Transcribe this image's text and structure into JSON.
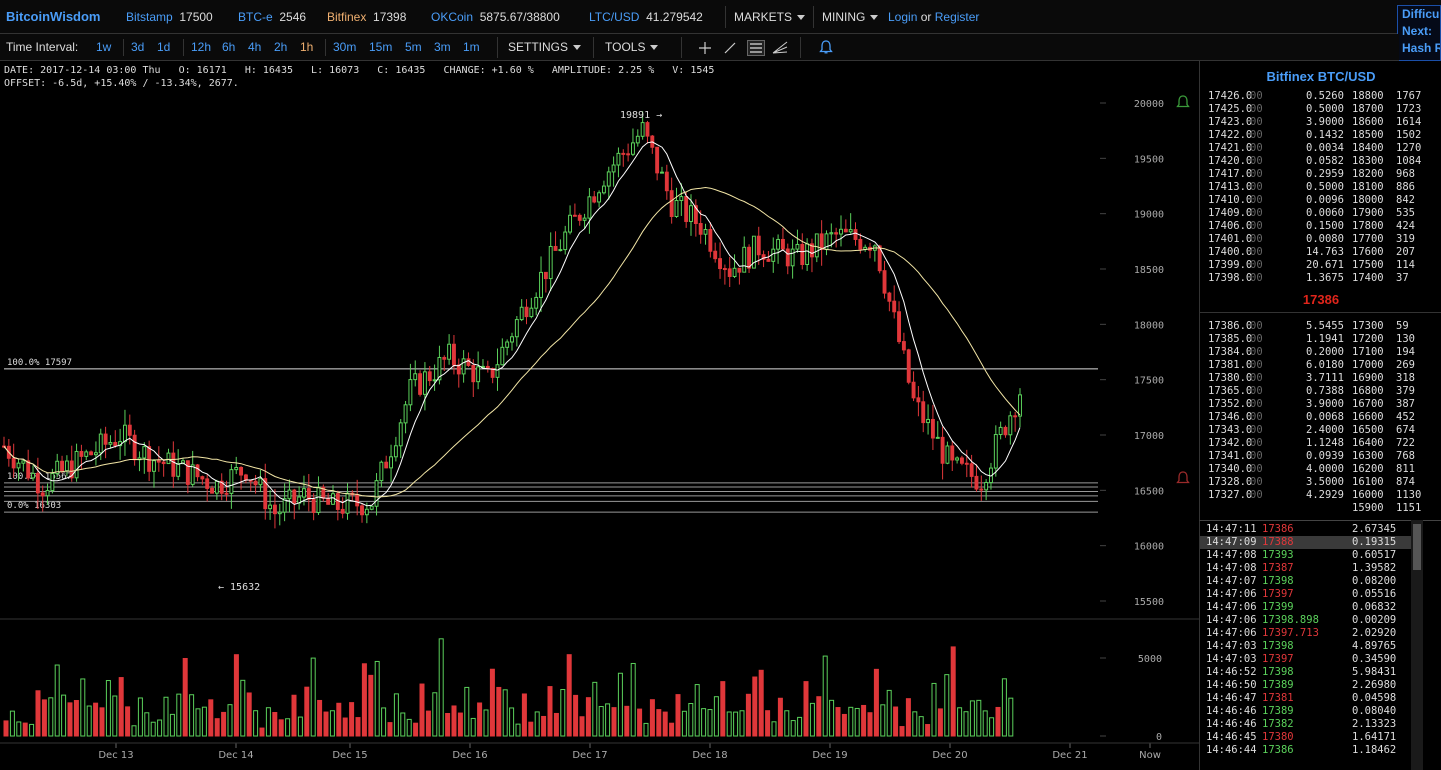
{
  "topbar": {
    "brand": "BitcoinWisdom",
    "markets": [
      {
        "name": "Bitstamp",
        "price": "17500"
      },
      {
        "name": "BTC-e",
        "price": "2546"
      },
      {
        "name": "Bitfinex",
        "price": "17398"
      },
      {
        "name": "OKCoin",
        "price": "5875.67/38800"
      },
      {
        "name": "LTC/USD",
        "price": "41.279542"
      }
    ],
    "menu_markets": "MARKETS",
    "menu_mining": "MINING",
    "login": "Login",
    "or": "or",
    "register": "Register",
    "difficulty_box": [
      "Difficulty",
      "Next:",
      "Hash Rate"
    ]
  },
  "toolbar": {
    "time_interval_label": "Time Interval:",
    "intervals": [
      "1w",
      "3d",
      "1d",
      "12h",
      "6h",
      "4h",
      "2h",
      "1h",
      "30m",
      "15m",
      "5m",
      "3m",
      "1m"
    ],
    "selected_interval": "1h",
    "settings": "SETTINGS",
    "tools": "TOOLS"
  },
  "ohlc": {
    "line1": "DATE: 2017-12-14 03:00 Thu   O: 16171   H: 16435   L: 16073   C: 16435   CHANGE: +1.60 %   AMPLITUDE: 2.25 %   V: 1545",
    "line2": "OFFSET: -6.5d, +15.40% / -13.34%, 2677."
  },
  "chart_data": {
    "type": "candlestick",
    "price_axis": {
      "ticks": [
        15500,
        16000,
        16500,
        17000,
        17500,
        18000,
        18500,
        19000,
        19500,
        20000
      ],
      "ylim": [
        15350,
        20100
      ]
    },
    "volume_axis": {
      "ticks": [
        0,
        5000
      ],
      "ylim": [
        0,
        6500
      ]
    },
    "x_labels": [
      "Dec 13",
      "Dec 14",
      "Dec 15",
      "Dec 16",
      "Dec 17",
      "Dec 18",
      "Dec 19",
      "Dec 20",
      "Dec 21",
      "Now"
    ],
    "fib_labels": [
      "100.0% 17597",
      "100.0% 16567",
      "0.0% 16303"
    ],
    "fib_levels": [
      17597,
      16567,
      16530,
      16490,
      16450,
      16400,
      16303
    ],
    "annotations": [
      {
        "text": "19891 →",
        "price": 19891
      },
      {
        "text": "← 15632",
        "price": 15632
      }
    ],
    "hour_index_domain": [
      0,
      210
    ],
    "close_anchors": [
      [
        0,
        16900
      ],
      [
        8,
        16550
      ],
      [
        16,
        16780
      ],
      [
        24,
        17000
      ],
      [
        30,
        16800
      ],
      [
        36,
        16700
      ],
      [
        44,
        16550
      ],
      [
        50,
        16700
      ],
      [
        56,
        16300
      ],
      [
        62,
        16450
      ],
      [
        68,
        16350
      ],
      [
        76,
        16400
      ],
      [
        84,
        17400
      ],
      [
        92,
        17700
      ],
      [
        100,
        17500
      ],
      [
        108,
        18200
      ],
      [
        116,
        18800
      ],
      [
        124,
        19350
      ],
      [
        132,
        19750
      ],
      [
        138,
        19100
      ],
      [
        144,
        18900
      ],
      [
        150,
        18500
      ],
      [
        156,
        18700
      ],
      [
        164,
        18600
      ],
      [
        172,
        18800
      ],
      [
        180,
        18750
      ],
      [
        188,
        17300
      ],
      [
        196,
        16700
      ],
      [
        202,
        16600
      ],
      [
        210,
        17400
      ]
    ],
    "volume_pattern": [
      900,
      1400,
      2100,
      2600,
      3300,
      1800,
      4200,
      2500,
      1200,
      3700,
      2200,
      1700,
      4700,
      2900,
      1500,
      3100,
      5700,
      2300,
      1900,
      3400
    ]
  },
  "orderbook": {
    "title": "Bitfinex BTC/USD",
    "asks": [
      [
        "17426.0",
        "00",
        "0.5260",
        "18800",
        "1767"
      ],
      [
        "17425.0",
        "00",
        "0.5000",
        "18700",
        "1723"
      ],
      [
        "17423.0",
        "00",
        "3.9000",
        "18600",
        "1614"
      ],
      [
        "17422.0",
        "00",
        "0.1432",
        "18500",
        "1502"
      ],
      [
        "17421.0",
        "00",
        "0.0034",
        "18400",
        "1270"
      ],
      [
        "17420.0",
        "00",
        "0.0582",
        "18300",
        "1084"
      ],
      [
        "17417.0",
        "00",
        "0.2959",
        "18200",
        "968"
      ],
      [
        "17413.0",
        "00",
        "0.5000",
        "18100",
        "886"
      ],
      [
        "17410.0",
        "00",
        "0.0096",
        "18000",
        "842"
      ],
      [
        "17409.0",
        "00",
        "0.0060",
        "17900",
        "535"
      ],
      [
        "17406.0",
        "00",
        "0.1500",
        "17800",
        "424"
      ],
      [
        "17401.0",
        "00",
        "0.0080",
        "17700",
        "319"
      ],
      [
        "17400.0",
        "00",
        "14.763",
        "17600",
        "207"
      ],
      [
        "17399.0",
        "00",
        "20.671",
        "17500",
        "114"
      ],
      [
        "17398.0",
        "00",
        "1.3675",
        "17400",
        "37"
      ]
    ],
    "last_price": "17386",
    "bids": [
      [
        "17386.0",
        "00",
        "5.5455",
        "17300",
        "59"
      ],
      [
        "17385.0",
        "00",
        "1.1941",
        "17200",
        "130"
      ],
      [
        "17384.0",
        "00",
        "0.2000",
        "17100",
        "194"
      ],
      [
        "17381.0",
        "00",
        "6.0180",
        "17000",
        "269"
      ],
      [
        "17380.0",
        "00",
        "3.7111",
        "16900",
        "318"
      ],
      [
        "17365.0",
        "00",
        "0.7388",
        "16800",
        "379"
      ],
      [
        "17352.0",
        "00",
        "3.9000",
        "16700",
        "387"
      ],
      [
        "17346.0",
        "00",
        "0.0068",
        "16600",
        "452"
      ],
      [
        "17343.0",
        "00",
        "2.4000",
        "16500",
        "674"
      ],
      [
        "17342.0",
        "00",
        "1.1248",
        "16400",
        "722"
      ],
      [
        "17341.0",
        "00",
        "0.0939",
        "16300",
        "768"
      ],
      [
        "17340.0",
        "00",
        "4.0000",
        "16200",
        "811"
      ],
      [
        "17328.0",
        "00",
        "3.5000",
        "16100",
        "874"
      ],
      [
        "17327.0",
        "00",
        "4.2929",
        "16000",
        "1130"
      ],
      [
        "",
        "",
        "",
        "15900",
        "1151"
      ]
    ]
  },
  "trades": [
    [
      "14:47:11",
      "17386",
      "dn",
      "2.67345"
    ],
    [
      "14:47:09",
      "17388",
      "dn",
      "0.19315"
    ],
    [
      "14:47:08",
      "17393",
      "up",
      "0.60517"
    ],
    [
      "14:47:08",
      "17387",
      "dn",
      "1.39582"
    ],
    [
      "14:47:07",
      "17398",
      "up",
      "0.08200"
    ],
    [
      "14:47:06",
      "17397",
      "dn",
      "0.05516"
    ],
    [
      "14:47:06",
      "17399",
      "up",
      "0.06832"
    ],
    [
      "14:47:06",
      "17398.898",
      "up",
      "0.00209"
    ],
    [
      "14:47:06",
      "17397.713",
      "dn",
      "2.02920"
    ],
    [
      "14:47:03",
      "17398",
      "up",
      "4.89765"
    ],
    [
      "14:47:03",
      "17397",
      "dn",
      "0.34590"
    ],
    [
      "14:46:52",
      "17398",
      "up",
      "5.98431"
    ],
    [
      "14:46:50",
      "17389",
      "up",
      "2.26980"
    ],
    [
      "14:46:47",
      "17381",
      "dn",
      "0.04598"
    ],
    [
      "14:46:46",
      "17389",
      "up",
      "0.08040"
    ],
    [
      "14:46:46",
      "17382",
      "up",
      "2.13323"
    ],
    [
      "14:46:45",
      "17380",
      "dn",
      "1.64171"
    ],
    [
      "14:46:44",
      "17386",
      "up",
      "1.18462"
    ]
  ],
  "colors": {
    "up": "#5bd15b",
    "down": "#e0373a",
    "accent": "#4a9df8",
    "highlight": "#f0b070",
    "last_price": "#e0251b"
  }
}
